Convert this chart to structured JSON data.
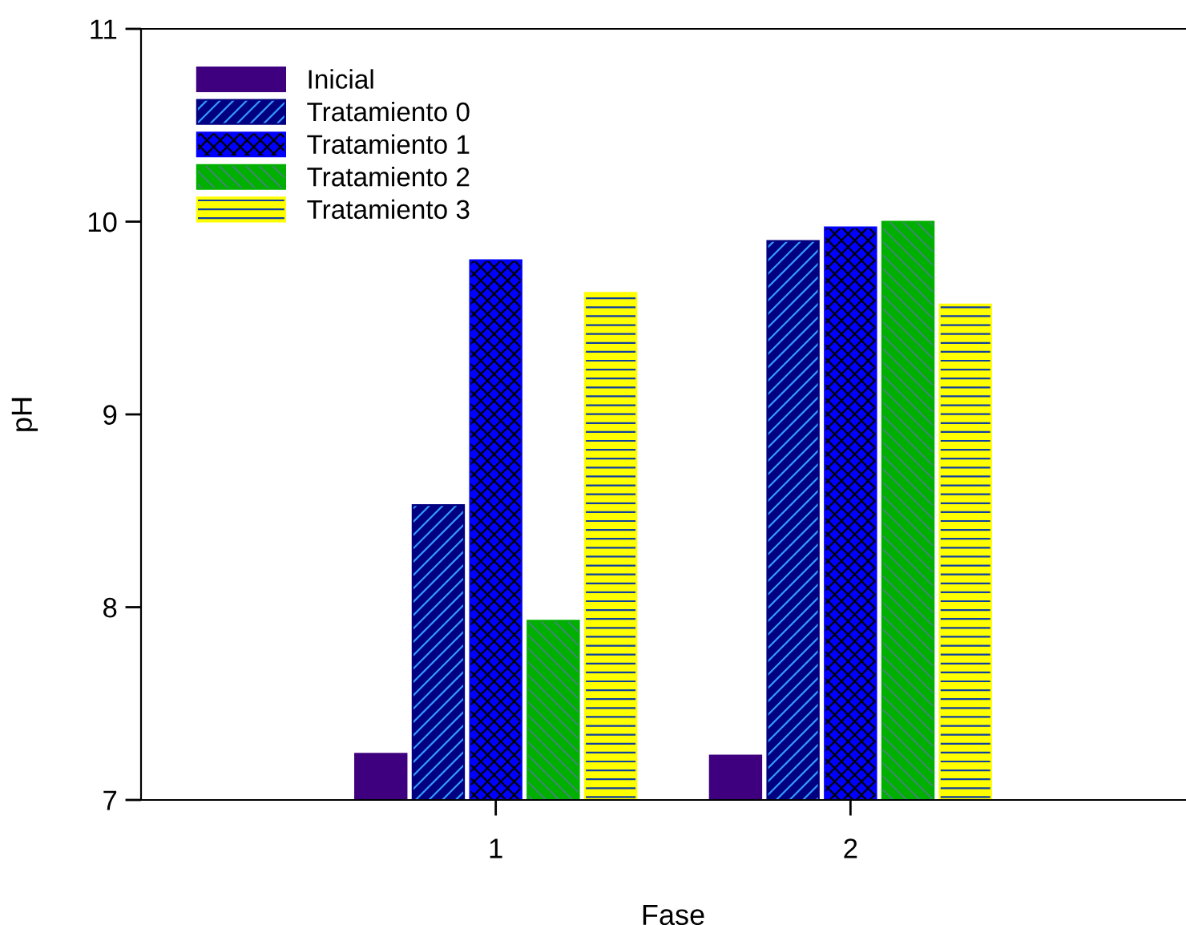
{
  "chart_data": {
    "type": "bar",
    "xlabel": "Fase",
    "ylabel": "pH",
    "categories": [
      "1",
      "2"
    ],
    "series": [
      {
        "name": "Inicial",
        "color": "#3f007f",
        "values": [
          7.24,
          7.23
        ]
      },
      {
        "name": "Tratamiento 0",
        "color": "#000080",
        "values": [
          8.53,
          9.9
        ]
      },
      {
        "name": "Tratamiento 1",
        "color": "#0000ff",
        "values": [
          9.8,
          9.97
        ]
      },
      {
        "name": "Tratamiento 2",
        "color": "#00b000",
        "values": [
          7.93,
          10.0
        ]
      },
      {
        "name": "Tratamiento 3",
        "color": "#ffff00",
        "values": [
          9.63,
          9.57
        ]
      }
    ],
    "ylim": [
      7,
      11
    ],
    "yticks": [
      7,
      8,
      9,
      10,
      11
    ],
    "legend": "top left",
    "grid": false
  }
}
